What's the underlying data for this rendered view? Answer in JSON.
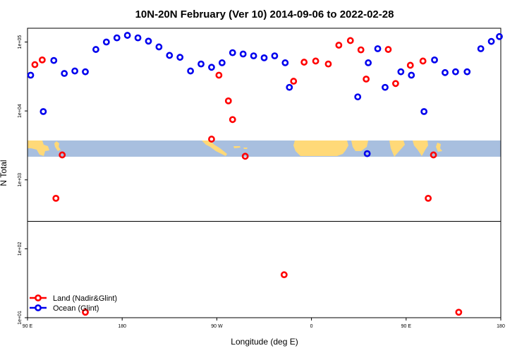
{
  "chart_data": {
    "type": "scatter",
    "title": "10N-20N February (Ver 10)   2014-09-06 to 2022-02-28",
    "xlabel": "Longitude (deg E)",
    "ylabel": "N Total",
    "xlim": [
      90,
      540
    ],
    "ylim_log10": [
      1,
      5.2
    ],
    "y_scale": "log",
    "x_ticks": [
      {
        "value": 90,
        "label": "90 E"
      },
      {
        "value": 180,
        "label": "180"
      },
      {
        "value": 270,
        "label": "90 W"
      },
      {
        "value": 360,
        "label": "0"
      },
      {
        "value": 450,
        "label": "90 E"
      },
      {
        "value": 540,
        "label": "180"
      }
    ],
    "y_ticks": [
      {
        "value": 10,
        "label": "1e+01"
      },
      {
        "value": 100,
        "label": "1e+02"
      },
      {
        "value": 1000,
        "label": "1e+03"
      },
      {
        "value": 10000,
        "label": "1e+04"
      },
      {
        "value": 100000,
        "label": "1e+05"
      }
    ],
    "hline": 250,
    "legend_position": "bottom-left",
    "map_strip_lat_range": "10N-20N",
    "colors": {
      "land": "#ff0000",
      "ocean": "#0000ee",
      "map_ocean": "#a8bfdf",
      "map_land": "#ffd978",
      "axis": "#000000"
    },
    "series": [
      {
        "name": "Land (Nadir&Glint)",
        "points": [
          {
            "x": 97,
            "y": 47000
          },
          {
            "x": 104,
            "y": 55000
          },
          {
            "x": 117,
            "y": 540
          },
          {
            "x": 123,
            "y": 2300
          },
          {
            "x": 145,
            "y": 12
          },
          {
            "x": 265,
            "y": 3900
          },
          {
            "x": 272,
            "y": 33000
          },
          {
            "x": 281,
            "y": 14000
          },
          {
            "x": 285,
            "y": 7500
          },
          {
            "x": 297,
            "y": 2200
          },
          {
            "x": 334,
            "y": 42
          },
          {
            "x": 343,
            "y": 27000
          },
          {
            "x": 353,
            "y": 51000
          },
          {
            "x": 364,
            "y": 53000
          },
          {
            "x": 376,
            "y": 48000
          },
          {
            "x": 386,
            "y": 90000
          },
          {
            "x": 397,
            "y": 105000
          },
          {
            "x": 407,
            "y": 77000
          },
          {
            "x": 412,
            "y": 29000
          },
          {
            "x": 433,
            "y": 78000
          },
          {
            "x": 440,
            "y": 25000
          },
          {
            "x": 454,
            "y": 46000
          },
          {
            "x": 466,
            "y": 53000
          },
          {
            "x": 471,
            "y": 540
          },
          {
            "x": 476,
            "y": 2300
          },
          {
            "x": 500,
            "y": 12
          }
        ]
      },
      {
        "name": "Ocean (Glint)",
        "points": [
          {
            "x": 93,
            "y": 33000
          },
          {
            "x": 105,
            "y": 9800
          },
          {
            "x": 115,
            "y": 54000
          },
          {
            "x": 125,
            "y": 35000
          },
          {
            "x": 135,
            "y": 38000
          },
          {
            "x": 145,
            "y": 37000
          },
          {
            "x": 155,
            "y": 78000
          },
          {
            "x": 165,
            "y": 100000
          },
          {
            "x": 175,
            "y": 115000
          },
          {
            "x": 185,
            "y": 125000
          },
          {
            "x": 195,
            "y": 115000
          },
          {
            "x": 205,
            "y": 103000
          },
          {
            "x": 215,
            "y": 85000
          },
          {
            "x": 225,
            "y": 64000
          },
          {
            "x": 235,
            "y": 60000
          },
          {
            "x": 245,
            "y": 38000
          },
          {
            "x": 255,
            "y": 48000
          },
          {
            "x": 265,
            "y": 43000
          },
          {
            "x": 275,
            "y": 50000
          },
          {
            "x": 285,
            "y": 70000
          },
          {
            "x": 295,
            "y": 67000
          },
          {
            "x": 305,
            "y": 63000
          },
          {
            "x": 315,
            "y": 59000
          },
          {
            "x": 325,
            "y": 63000
          },
          {
            "x": 335,
            "y": 50000
          },
          {
            "x": 339,
            "y": 22000
          },
          {
            "x": 404,
            "y": 16000
          },
          {
            "x": 413,
            "y": 2400
          },
          {
            "x": 414,
            "y": 50000
          },
          {
            "x": 423,
            "y": 80000
          },
          {
            "x": 430,
            "y": 22000
          },
          {
            "x": 445,
            "y": 37000
          },
          {
            "x": 455,
            "y": 33000
          },
          {
            "x": 467,
            "y": 9800
          },
          {
            "x": 477,
            "y": 55000
          },
          {
            "x": 487,
            "y": 36000
          },
          {
            "x": 497,
            "y": 37000
          },
          {
            "x": 508,
            "y": 37000
          },
          {
            "x": 521,
            "y": 80000
          },
          {
            "x": 531,
            "y": 102000
          },
          {
            "x": 541,
            "y": 120000
          }
        ]
      }
    ]
  }
}
